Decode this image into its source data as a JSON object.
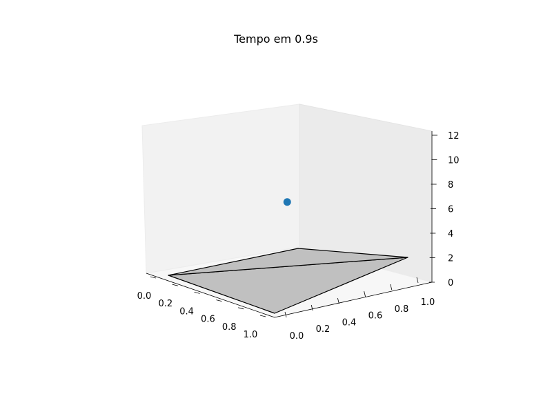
{
  "chart_data": {
    "type": "scatter",
    "projection": "3d",
    "title": "Tempo em 0.9s",
    "xlabel": "",
    "ylabel": "",
    "zlabel": "",
    "xlim": [
      0,
      1
    ],
    "ylim": [
      0,
      1
    ],
    "zlim": [
      0,
      12
    ],
    "x_ticks": [
      "0.0",
      "0.2",
      "0.4",
      "0.6",
      "0.8",
      "1.0"
    ],
    "y_ticks": [
      "0.0",
      "0.2",
      "0.4",
      "0.6",
      "0.8",
      "1.0"
    ],
    "z_ticks": [
      "0",
      "2",
      "4",
      "6",
      "8",
      "10",
      "12"
    ],
    "grid": false,
    "series": [
      {
        "kind": "point",
        "color": "#1f77b4",
        "points": [
          {
            "x": 0.5,
            "y": 0.5,
            "z": 5.9
          }
        ]
      }
    ],
    "surface": {
      "kind": "plane",
      "z": 0,
      "face_color": "#c0c0c0",
      "edge_color": "#000000"
    },
    "pane_colors": {
      "back": "#f2f2f2",
      "side": "#ebebeb",
      "floor": "#f7f7f7"
    }
  }
}
